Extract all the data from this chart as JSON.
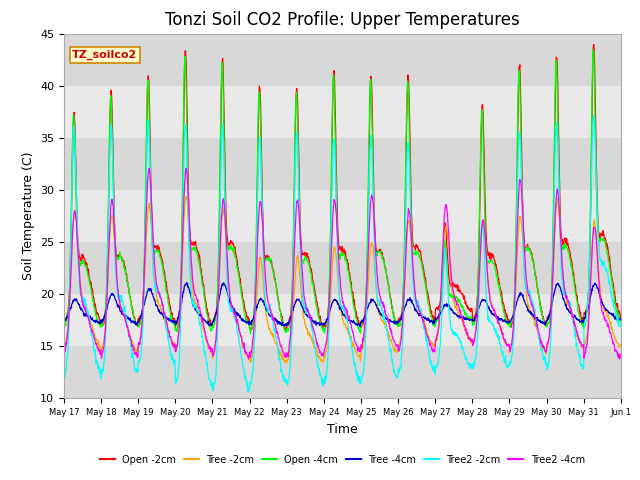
{
  "title": "Tonzi Soil CO2 Profile: Upper Temperatures",
  "ylabel": "Soil Temperature (C)",
  "xlabel": "Time",
  "watermark_text": "TZ_soilco2",
  "ylim": [
    10,
    45
  ],
  "x_tick_labels": [
    "May 17",
    "May 18",
    "May 19",
    "May 20",
    "May 21",
    "May 22",
    "May 23",
    "May 24",
    "May 25",
    "May 26",
    "May 27",
    "May 28",
    "May 29",
    "May 30",
    "May 31",
    "Jun 1"
  ],
  "series": [
    {
      "label": "Open -2cm",
      "color": "#FF0000"
    },
    {
      "label": "Tree -2cm",
      "color": "#FFA500"
    },
    {
      "label": "Open -4cm",
      "color": "#00FF00"
    },
    {
      "label": "Tree -4cm",
      "color": "#0000CC"
    },
    {
      "label": "Tree2 -2cm",
      "color": "#00FFFF"
    },
    {
      "label": "Tree2 -4cm",
      "color": "#FF00FF"
    }
  ],
  "background_color": "#FFFFFF",
  "plot_bg_color": "#E8E8E8",
  "grid_band_colors": [
    "#DCDCDC",
    "#E8E8E8"
  ],
  "title_fontsize": 12,
  "axis_fontsize": 9,
  "tick_fontsize": 8,
  "n_days": 15,
  "peak_heights_open2": [
    37.5,
    39.5,
    41.0,
    43.5,
    42.5,
    40.0,
    40.0,
    41.5,
    41.0,
    41.0,
    26.5,
    38.5,
    42.0,
    43.0,
    44.0
  ],
  "peak_heights_open4": [
    37.2,
    39.0,
    40.8,
    43.0,
    42.0,
    39.5,
    39.5,
    41.0,
    40.5,
    40.5,
    25.0,
    37.5,
    41.5,
    42.5,
    43.5
  ],
  "peak_heights_tree2": [
    28.0,
    27.5,
    28.5,
    29.5,
    28.0,
    23.5,
    23.5,
    24.5,
    25.0,
    27.0,
    26.5,
    27.0,
    27.5,
    29.0,
    27.0
  ],
  "peak_heights_magenta": [
    28.0,
    29.0,
    32.0,
    32.0,
    29.0,
    29.0,
    29.0,
    29.0,
    29.5,
    28.0,
    28.5,
    27.0,
    31.0,
    30.0,
    26.5
  ],
  "peak_heights_cyan": [
    36.0,
    36.0,
    36.5,
    36.5,
    36.0,
    35.0,
    35.5,
    35.0,
    35.0,
    34.5,
    24.0,
    27.0,
    35.5,
    36.5,
    37.0
  ],
  "trough_cyan": [
    12.5,
    12.5,
    13.5,
    11.5,
    11.0,
    11.5,
    11.5,
    11.5,
    12.0,
    12.5,
    13.0,
    13.0,
    13.5,
    13.0,
    17.0
  ]
}
